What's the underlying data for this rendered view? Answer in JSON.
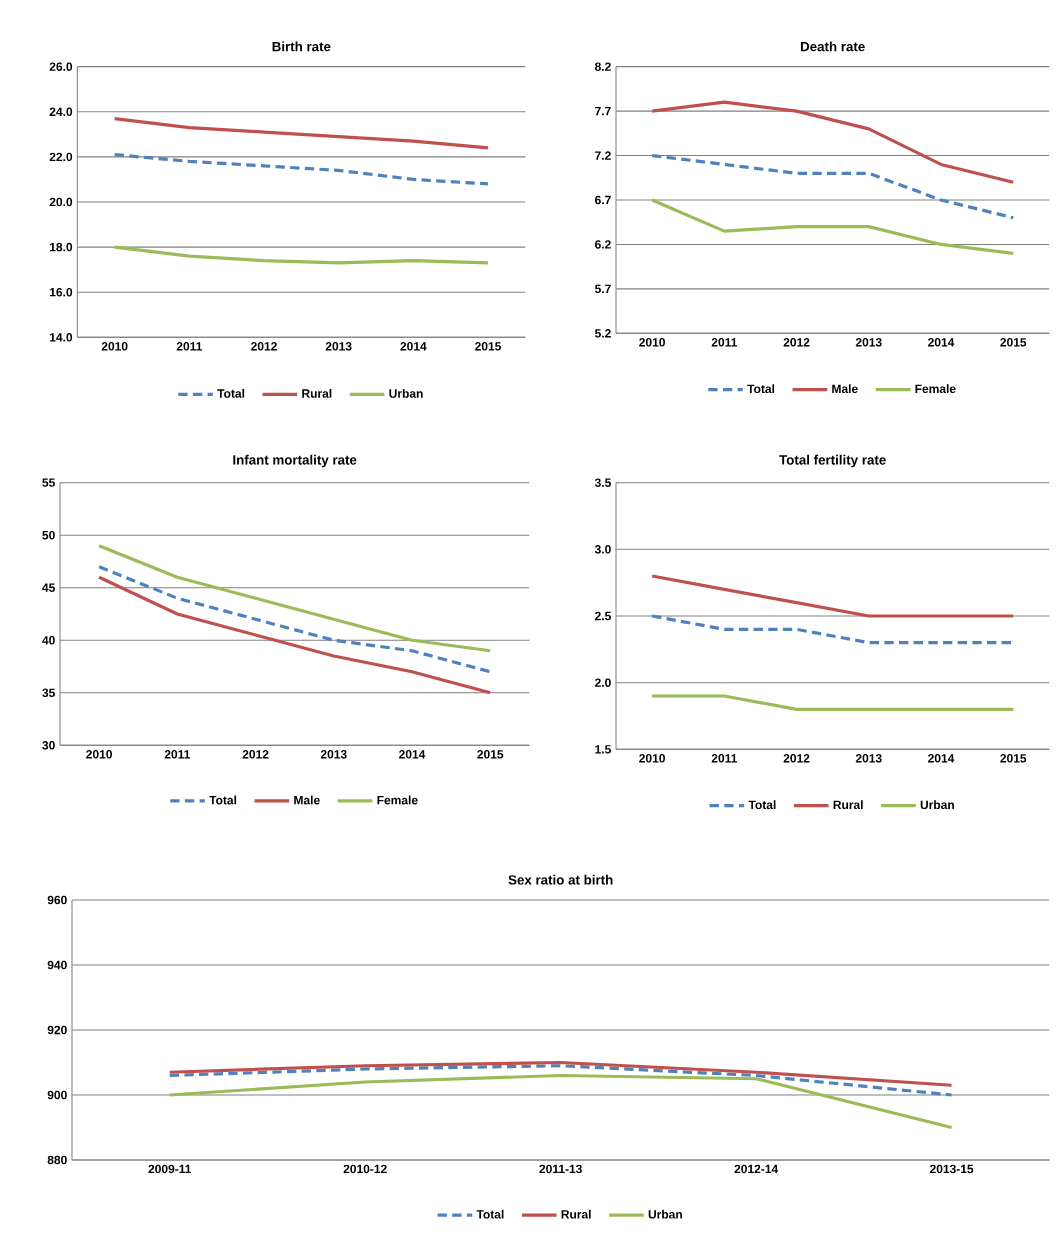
{
  "chart_data": [
    {
      "type": "line",
      "title": "Birth rate",
      "categories": [
        "2010",
        "2011",
        "2012",
        "2013",
        "2014",
        "2015"
      ],
      "ylim": [
        14,
        26
      ],
      "yticks": [
        {
          "value": 14,
          "label": "14.0"
        },
        {
          "value": 16,
          "label": "16.0"
        },
        {
          "value": 18,
          "label": "18.0"
        },
        {
          "value": 20,
          "label": "20.0"
        },
        {
          "value": 22,
          "label": "22.0"
        },
        {
          "value": 24,
          "label": "24.0"
        },
        {
          "value": 26,
          "label": "26.0"
        }
      ],
      "grid": "y",
      "legend": "bottom",
      "marker": "none",
      "series": [
        {
          "name": "Total",
          "color": "#4f81bd",
          "line_style": "dashed",
          "values": [
            22.1,
            21.8,
            21.6,
            21.4,
            21.0,
            20.8
          ]
        },
        {
          "name": "Rural",
          "color": "#c0504d",
          "line_style": "solid",
          "values": [
            23.7,
            23.3,
            23.1,
            22.9,
            22.7,
            22.4
          ]
        },
        {
          "name": "Urban",
          "color": "#9bbb59",
          "line_style": "solid",
          "values": [
            18.0,
            17.6,
            17.4,
            17.3,
            17.4,
            17.3
          ]
        }
      ]
    },
    {
      "type": "line",
      "title": "Death rate",
      "categories": [
        "2010",
        "2011",
        "2012",
        "2013",
        "2014",
        "2015"
      ],
      "ylim": [
        5.2,
        8.2
      ],
      "yticks": [
        5.2,
        5.7,
        6.2,
        6.7,
        7.2,
        7.7,
        8.2
      ],
      "grid": "y",
      "legend": "bottom",
      "marker": "none",
      "series": [
        {
          "name": "Total",
          "color": "#4f81bd",
          "line_style": "dashed",
          "values": [
            7.2,
            7.1,
            7.0,
            7.0,
            6.7,
            6.5
          ]
        },
        {
          "name": "Male",
          "color": "#c0504d",
          "line_style": "solid",
          "values": [
            7.7,
            7.8,
            7.7,
            7.5,
            7.1,
            6.9
          ]
        },
        {
          "name": "Female",
          "color": "#9bbb59",
          "line_style": "solid",
          "values": [
            6.7,
            6.35,
            6.4,
            6.4,
            6.2,
            6.1
          ]
        }
      ]
    },
    {
      "type": "line",
      "title": "Infant mortality rate",
      "categories": [
        "2010",
        "2011",
        "2012",
        "2013",
        "2014",
        "2015"
      ],
      "ylim": [
        30,
        55
      ],
      "yticks": [
        30,
        35,
        40,
        45,
        50,
        55
      ],
      "grid": "y",
      "legend": "bottom",
      "marker": "none",
      "series": [
        {
          "name": "Total",
          "color": "#4f81bd",
          "line_style": "dashed",
          "values": [
            47,
            44,
            42,
            40,
            39,
            37
          ]
        },
        {
          "name": "Male",
          "color": "#c0504d",
          "line_style": "solid",
          "values": [
            46,
            42.5,
            40.5,
            38.5,
            37,
            35
          ]
        },
        {
          "name": "Female",
          "color": "#9bbb59",
          "line_style": "solid",
          "values": [
            49,
            46,
            44,
            42,
            40,
            39
          ]
        }
      ]
    },
    {
      "type": "line",
      "title": "Total fertility rate",
      "categories": [
        "2010",
        "2011",
        "2012",
        "2013",
        "2014",
        "2015"
      ],
      "ylim": [
        1.5,
        3.5
      ],
      "yticks": [
        1.5,
        {
          "value": 2,
          "label": "2.0"
        },
        2.5,
        {
          "value": 3,
          "label": "3.0"
        },
        3.5
      ],
      "grid": "y",
      "legend": "bottom",
      "marker": "none",
      "series": [
        {
          "name": "Total",
          "color": "#4f81bd",
          "line_style": "dashed",
          "values": [
            2.5,
            2.4,
            2.4,
            2.3,
            2.3,
            2.3
          ]
        },
        {
          "name": "Rural",
          "color": "#c0504d",
          "line_style": "solid",
          "values": [
            2.8,
            2.7,
            2.6,
            2.5,
            2.5,
            2.5
          ]
        },
        {
          "name": "Urban",
          "color": "#9bbb59",
          "line_style": "solid",
          "values": [
            1.9,
            1.9,
            1.8,
            1.8,
            1.8,
            1.8
          ]
        }
      ]
    },
    {
      "type": "line",
      "title": "Sex ratio at birth",
      "categories": [
        "2009-11",
        "2010-12",
        "2011-13",
        "2012-14",
        "2013-15"
      ],
      "ylim": [
        880,
        960
      ],
      "yticks": [
        880,
        900,
        920,
        940,
        960
      ],
      "grid": "y",
      "legend": "bottom",
      "marker": "none",
      "series": [
        {
          "name": "Total",
          "color": "#4f81bd",
          "line_style": "dashed",
          "values": [
            906,
            908,
            909,
            906,
            900
          ]
        },
        {
          "name": "Rural",
          "color": "#c0504d",
          "line_style": "solid",
          "values": [
            907,
            909,
            910,
            907,
            903
          ]
        },
        {
          "name": "Urban",
          "color": "#9bbb59",
          "line_style": "solid",
          "values": [
            900,
            904,
            906,
            905,
            890
          ]
        }
      ]
    }
  ]
}
